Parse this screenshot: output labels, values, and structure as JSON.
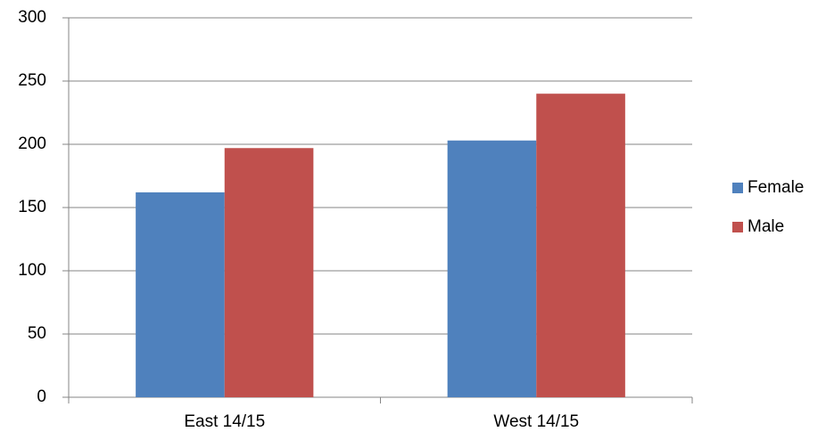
{
  "chart_data": {
    "type": "bar",
    "categories": [
      "East 14/15",
      "West 14/15"
    ],
    "series": [
      {
        "name": "Female",
        "color": "#4f81bd",
        "values": [
          162,
          203
        ]
      },
      {
        "name": "Male",
        "color": "#c0504d",
        "values": [
          197,
          240
        ]
      }
    ],
    "ylim": [
      0,
      300
    ],
    "yticks": [
      0,
      50,
      100,
      150,
      200,
      250,
      300
    ],
    "grid": true,
    "legend": "right"
  }
}
